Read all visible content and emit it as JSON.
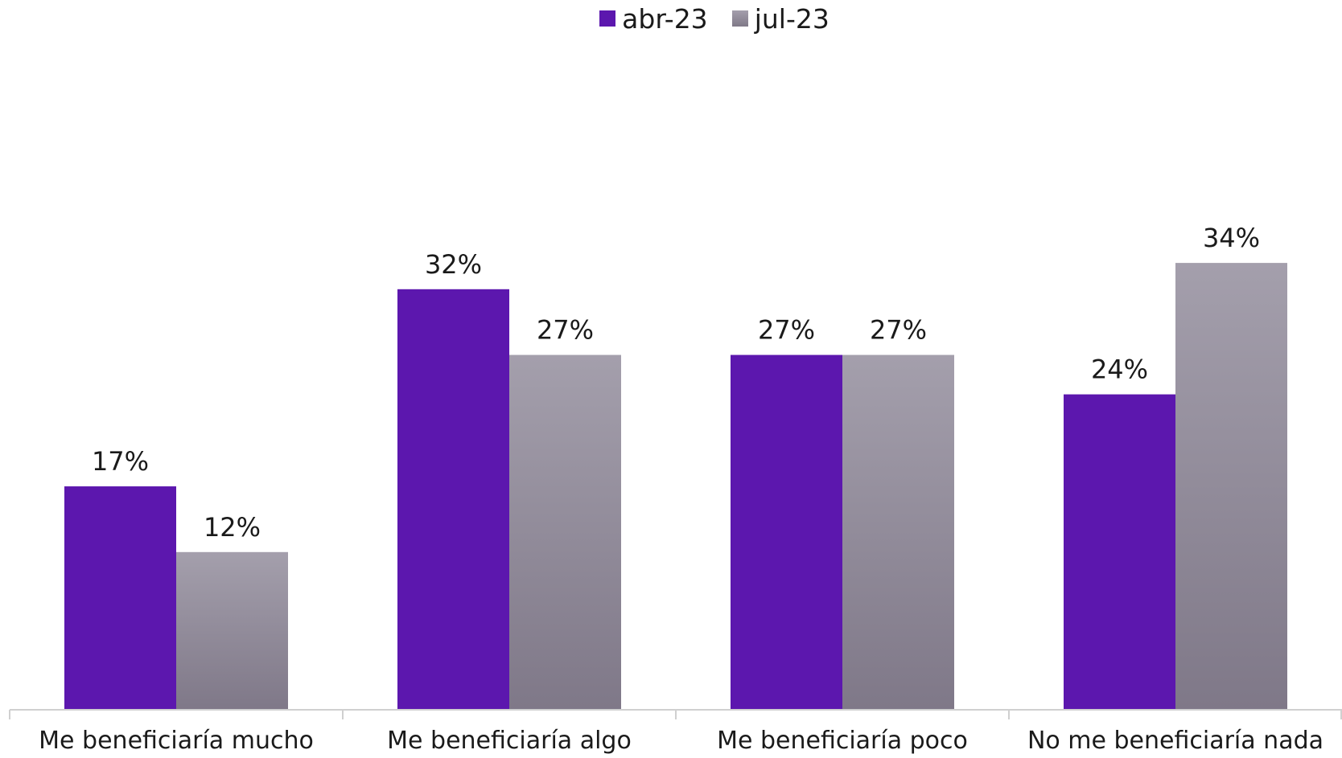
{
  "chart_data": {
    "type": "bar",
    "categories": [
      "Me beneficiaría mucho",
      "Me beneficiaría algo",
      "Me beneficiaría poco",
      "No me beneficiaría nada"
    ],
    "series": [
      {
        "name": "abr-23",
        "values": [
          17,
          32,
          27,
          24
        ],
        "labels": [
          "17%",
          "32%",
          "27%",
          "24%"
        ],
        "color": "#5c17ae"
      },
      {
        "name": "jul-23",
        "values": [
          12,
          27,
          27,
          34
        ],
        "labels": [
          "12%",
          "27%",
          "27%",
          "34%"
        ],
        "color": "#9b96a3"
      }
    ],
    "ylim": [
      0,
      34
    ],
    "grid": false,
    "legend_position": "top"
  },
  "legend": {
    "items": [
      "abr-23",
      "jul-23"
    ]
  }
}
